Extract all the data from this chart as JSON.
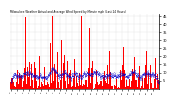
{
  "title": "Milwaukee Weather Actual and Average Wind Speed by Minute mph (Last 24 Hours)",
  "bar_color": "#ff0000",
  "line_color": "#0000cd",
  "bg_color": "#ffffff",
  "plot_bg": "#ffffff",
  "ylim": [
    0,
    46
  ],
  "yticks": [
    5,
    10,
    15,
    20,
    25,
    30,
    35,
    40,
    45
  ],
  "num_points": 1440,
  "seed": 7
}
